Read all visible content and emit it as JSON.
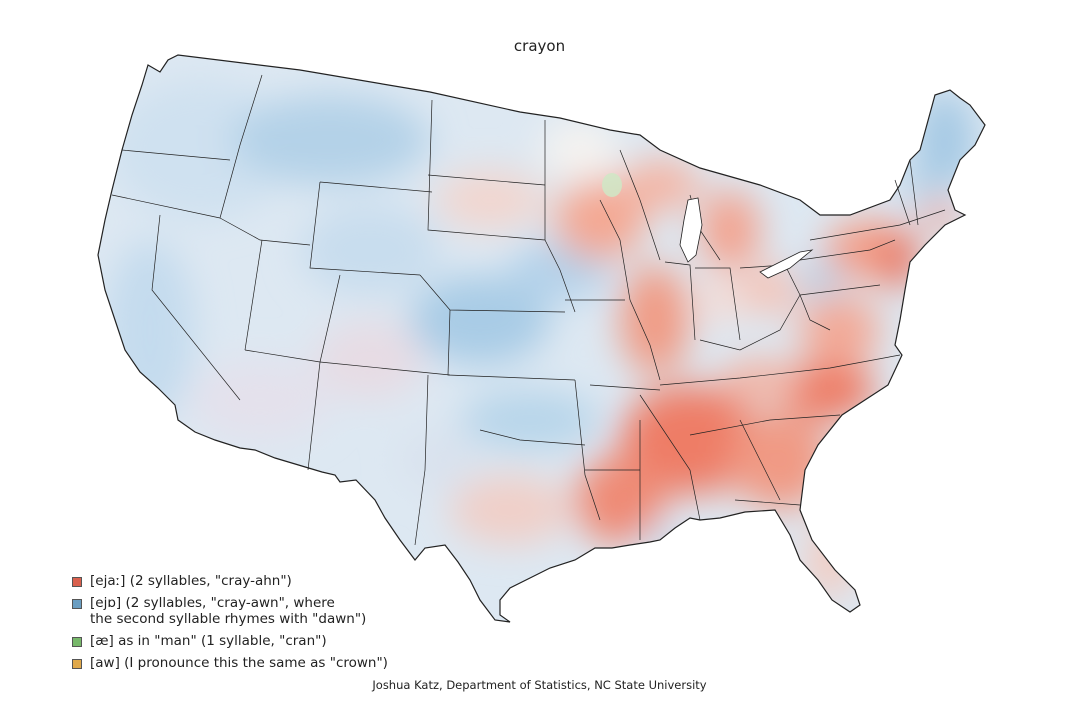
{
  "title": "crayon",
  "legend": [
    {
      "label": "[ejaː] (2 syllables, \"cray-ahn\")",
      "color": "#d9604d"
    },
    {
      "label": "[ejɒ] (2 syllables, \"cray-awn\", where\nthe second syllable rhymes with \"dawn\")",
      "color": "#6a9ec2"
    },
    {
      "label": "[æ] as in \"man\" (1 syllable, \"cran\")",
      "color": "#77b86a"
    },
    {
      "label": "[aw] (I pronounce this the same as \"crown\")",
      "color": "#e0a94b"
    }
  ],
  "credit": "Joshua Katz, Department of Statistics, NC State University",
  "colors": {
    "blue_light": "#dbe8f3",
    "blue_mid": "#b7d3e8",
    "blue_strong": "#9cc4e0",
    "red_light": "#f6c7ba",
    "red_mid": "#f0937d",
    "red_strong": "#ea6f57",
    "green": "#cfe8c5",
    "border": "#222222"
  }
}
